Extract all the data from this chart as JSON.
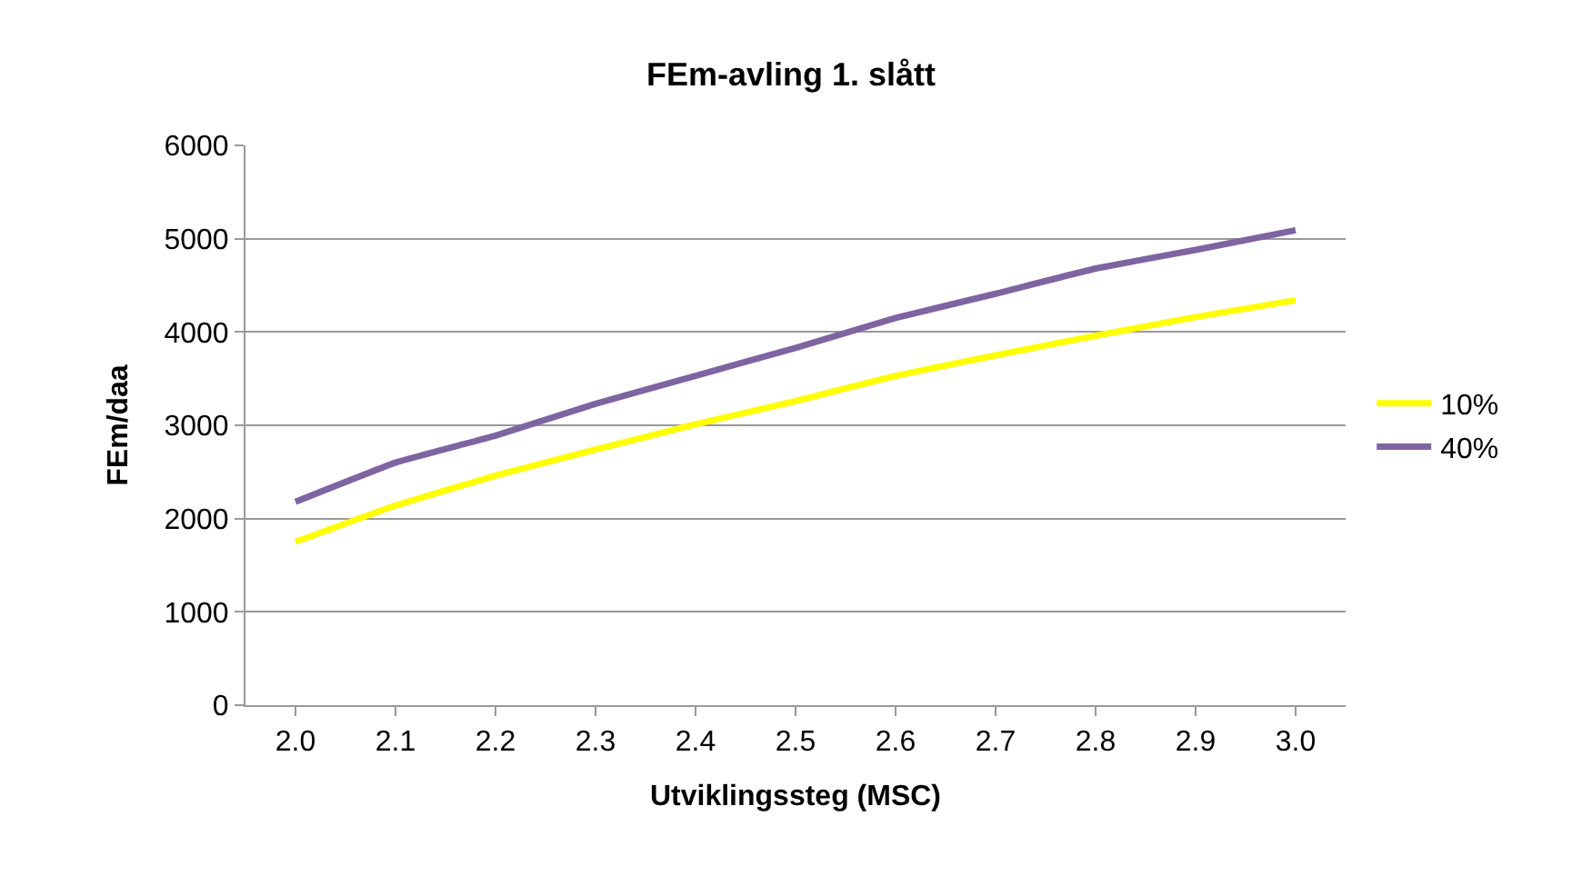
{
  "chart_data": {
    "type": "line",
    "title": "FEm-avling 1. slått",
    "xlabel": "Utviklingssteg (MSC)",
    "ylabel": "FEm/daa",
    "categories": [
      "2.0",
      "2.1",
      "2.2",
      "2.3",
      "2.4",
      "2.5",
      "2.6",
      "2.7",
      "2.8",
      "2.9",
      "3.0"
    ],
    "series": [
      {
        "name": "10%",
        "color": "#ffff00",
        "values": [
          1750,
          2140,
          2460,
          2740,
          3010,
          3260,
          3530,
          3750,
          3960,
          4160,
          4340
        ]
      },
      {
        "name": "40%",
        "color": "#7f64a2",
        "values": [
          2180,
          2600,
          2890,
          3230,
          3530,
          3830,
          4150,
          4410,
          4680,
          4880,
          5090
        ]
      }
    ],
    "ylim": [
      0,
      6000
    ],
    "yticks": [
      0,
      1000,
      2000,
      3000,
      4000,
      5000,
      6000
    ],
    "grid": "y",
    "legend": "right",
    "marker": "none",
    "line_style": "solid"
  }
}
